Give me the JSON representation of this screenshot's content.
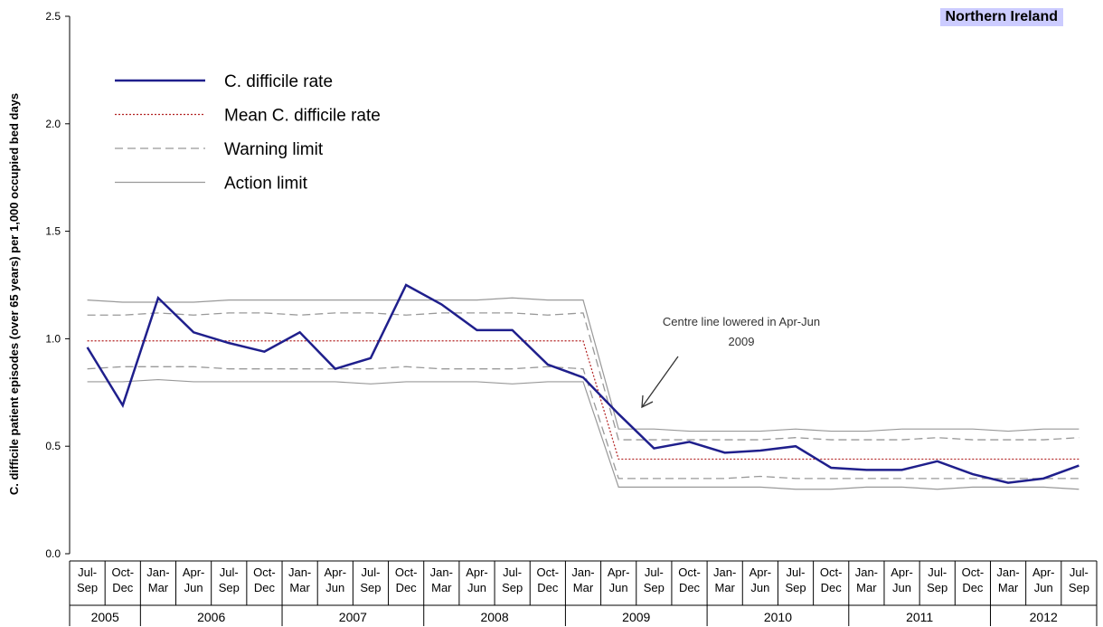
{
  "chart_data": {
    "type": "line",
    "title": "Northern Ireland",
    "y_label": "C. difficile patient episodes (over 65 years) per 1,000 occupied bed days",
    "annotation": "Centre line lowered in Apr-Jun 2009",
    "categories": [
      "Jul-Sep",
      "Oct-Dec",
      "Jan-Mar",
      "Apr-Jun",
      "Jul-Sep",
      "Oct-Dec",
      "Jan-Mar",
      "Apr-Jun",
      "Jul-Sep",
      "Oct-Dec",
      "Jan-Mar",
      "Apr-Jun",
      "Jul-Sep",
      "Oct-Dec",
      "Jan-Mar",
      "Apr-Jun",
      "Jul-Sep",
      "Oct-Dec",
      "Jan-Mar",
      "Apr-Jun",
      "Jul-Sep",
      "Oct-Dec",
      "Jan-Mar",
      "Apr-Jun",
      "Jul-Sep",
      "Oct-Dec",
      "Jan-Mar",
      "Apr-Jun",
      "Jul-Sep"
    ],
    "years": [
      "2005",
      "2006",
      "2007",
      "2008",
      "2009",
      "2010",
      "2011",
      "2012"
    ],
    "ylim": [
      0,
      2.5
    ],
    "yticks": [
      {
        "value": 0,
        "label": "0.0"
      },
      {
        "value": 0.5,
        "label": "0.5"
      },
      {
        "value": 1,
        "label": "1.0"
      },
      {
        "value": 1.5,
        "label": "1.5"
      },
      {
        "value": 2,
        "label": "2.0"
      },
      {
        "value": 2.5,
        "label": "2.5"
      }
    ],
    "series": [
      {
        "name": "C. difficile rate",
        "color": "#1f1f8c",
        "style": "solid",
        "values": [
          0.96,
          0.69,
          1.19,
          1.03,
          0.98,
          0.94,
          1.03,
          0.86,
          0.91,
          1.25,
          1.16,
          1.04,
          1.04,
          0.88,
          0.82,
          0.65,
          0.49,
          0.52,
          0.47,
          0.48,
          0.5,
          0.4,
          0.39,
          0.39,
          0.43,
          0.37,
          0.33,
          0.35,
          0.41
        ]
      },
      {
        "name": "Mean C. difficile rate",
        "color": "#b22222",
        "style": "dotted",
        "values": [
          0.99,
          0.99,
          0.99,
          0.99,
          0.99,
          0.99,
          0.99,
          0.99,
          0.99,
          0.99,
          0.99,
          0.99,
          0.99,
          0.99,
          0.99,
          0.44,
          0.44,
          0.44,
          0.44,
          0.44,
          0.44,
          0.44,
          0.44,
          0.44,
          0.44,
          0.44,
          0.44,
          0.44,
          0.44
        ]
      },
      {
        "name": "Warning limit",
        "color": "#999999",
        "style": "dashed",
        "values": [
          1.11,
          1.11,
          1.12,
          1.11,
          1.12,
          1.12,
          1.11,
          1.12,
          1.12,
          1.11,
          1.12,
          1.12,
          1.12,
          1.11,
          1.12,
          0.53,
          0.53,
          0.53,
          0.53,
          0.53,
          0.54,
          0.53,
          0.53,
          0.53,
          0.54,
          0.53,
          0.53,
          0.53,
          0.54
        ],
        "lower": [
          0.86,
          0.87,
          0.87,
          0.87,
          0.86,
          0.86,
          0.86,
          0.86,
          0.86,
          0.87,
          0.86,
          0.86,
          0.86,
          0.87,
          0.86,
          0.35,
          0.35,
          0.35,
          0.35,
          0.36,
          0.35,
          0.35,
          0.35,
          0.35,
          0.35,
          0.35,
          0.35,
          0.35,
          0.35
        ]
      },
      {
        "name": "Action limit",
        "color": "#999999",
        "style": "solid",
        "values": [
          1.18,
          1.17,
          1.17,
          1.17,
          1.18,
          1.18,
          1.18,
          1.18,
          1.18,
          1.18,
          1.18,
          1.18,
          1.19,
          1.18,
          1.18,
          0.58,
          0.58,
          0.57,
          0.57,
          0.57,
          0.58,
          0.57,
          0.57,
          0.58,
          0.58,
          0.58,
          0.57,
          0.58,
          0.58
        ],
        "lower": [
          0.8,
          0.8,
          0.81,
          0.8,
          0.8,
          0.8,
          0.8,
          0.8,
          0.79,
          0.8,
          0.8,
          0.8,
          0.79,
          0.8,
          0.8,
          0.31,
          0.31,
          0.31,
          0.31,
          0.31,
          0.3,
          0.3,
          0.31,
          0.31,
          0.3,
          0.31,
          0.31,
          0.31,
          0.3
        ]
      }
    ]
  }
}
